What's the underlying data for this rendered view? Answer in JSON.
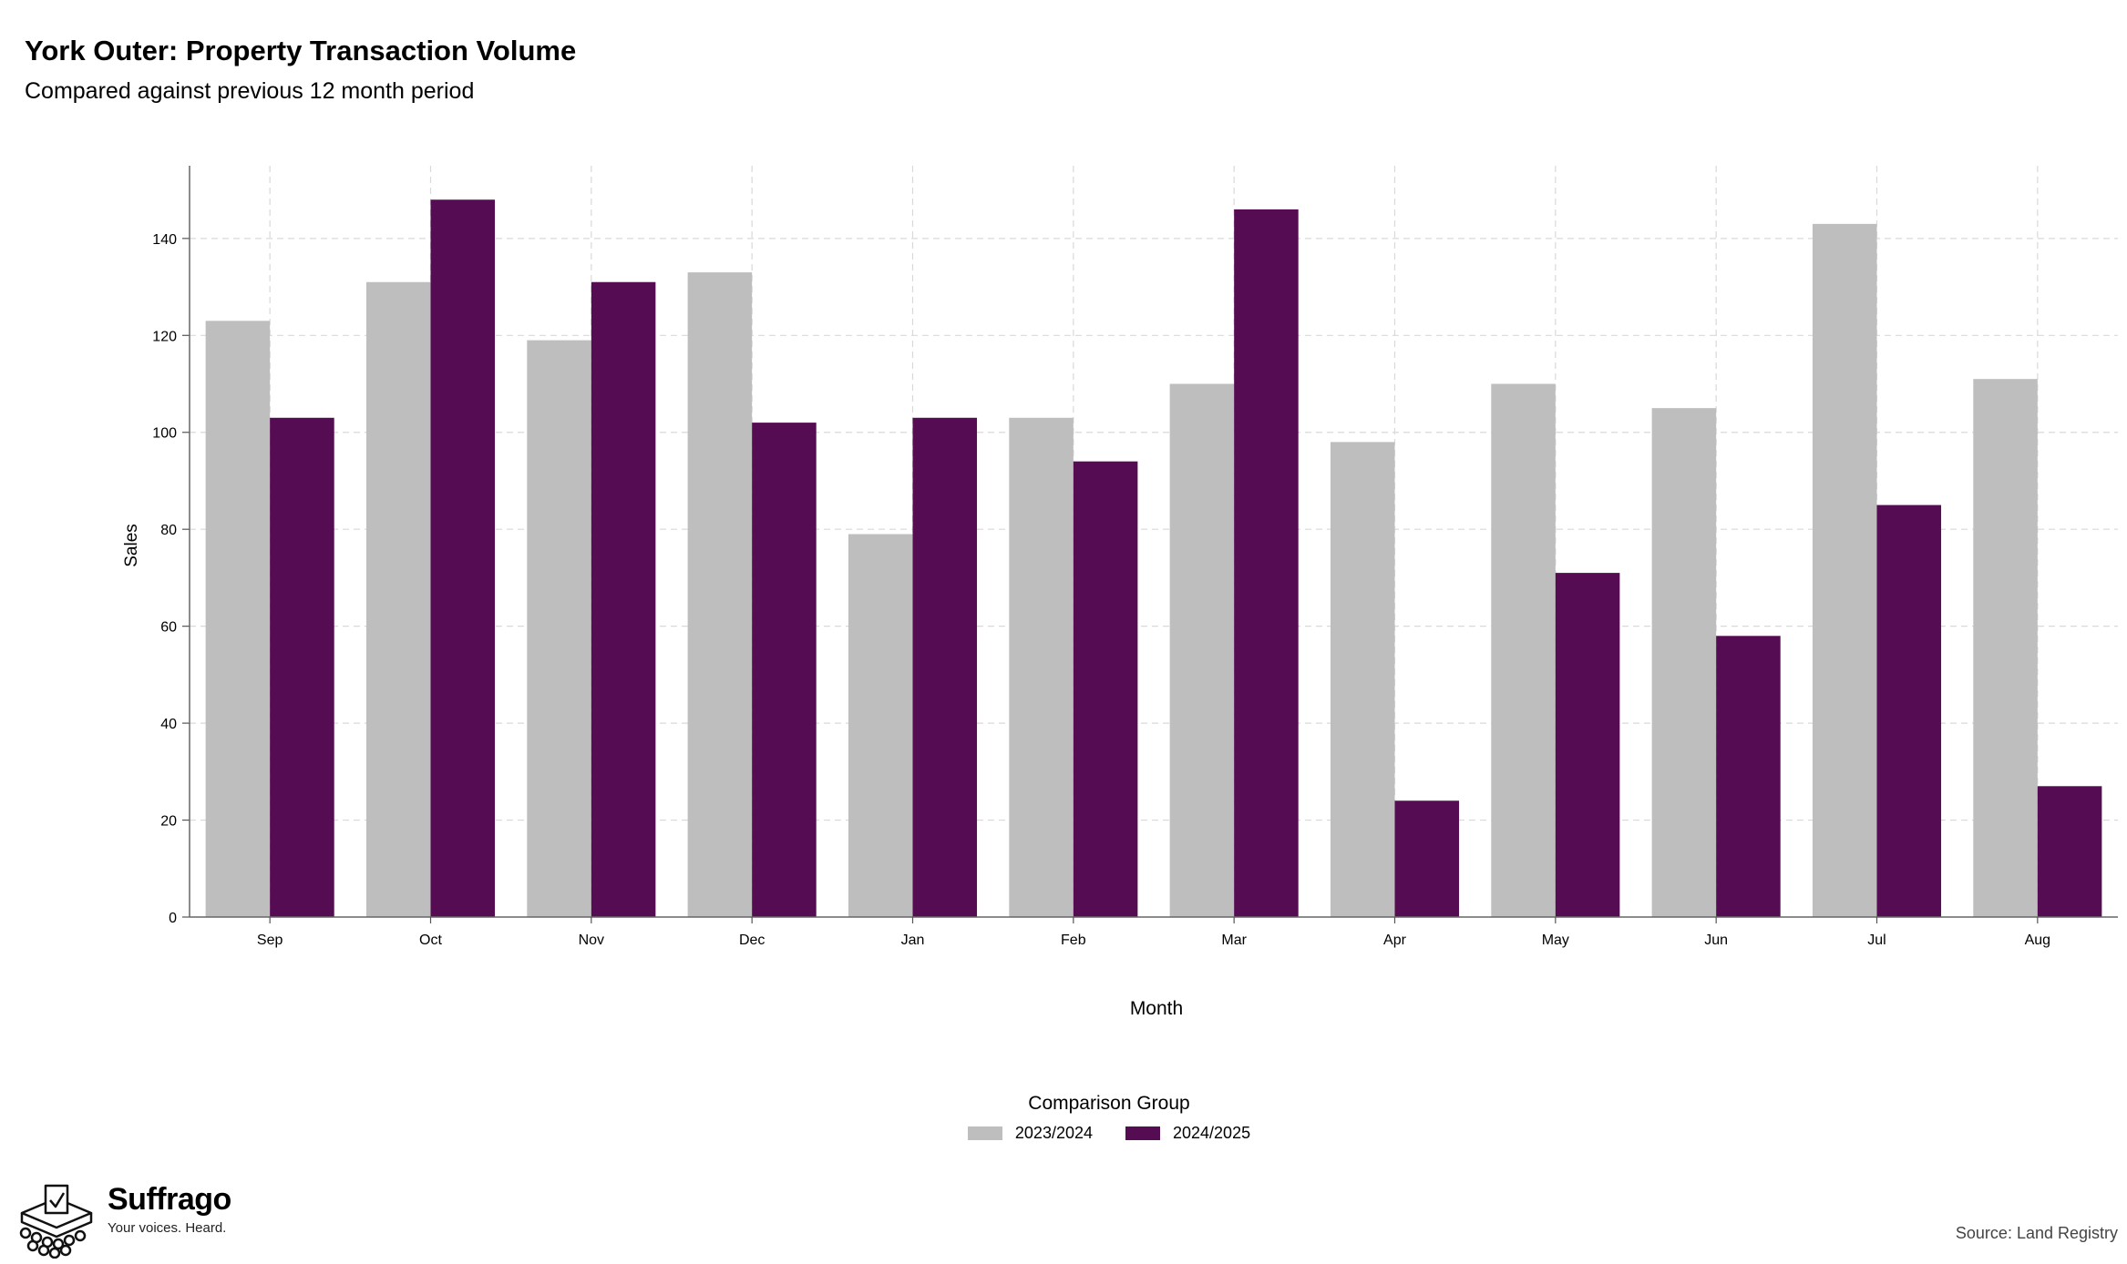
{
  "header": {
    "title": "York Outer: Property Transaction Volume",
    "subtitle": "Compared against previous 12 month period"
  },
  "chart_data": {
    "type": "bar",
    "title": "York Outer: Property Transaction Volume",
    "subtitle": "Compared against previous 12 month period",
    "xlabel": "Month",
    "ylabel": "Sales",
    "ylim": [
      0,
      155
    ],
    "yticks": [
      0,
      20,
      40,
      60,
      80,
      100,
      120,
      140
    ],
    "grid": true,
    "legend_position": "bottom",
    "legend_title": "Comparison Group",
    "categories": [
      "Sep",
      "Oct",
      "Nov",
      "Dec",
      "Jan",
      "Feb",
      "Mar",
      "Apr",
      "May",
      "Jun",
      "Jul",
      "Aug"
    ],
    "series": [
      {
        "name": "2023/2024",
        "color": "#bebebe",
        "values": [
          123,
          131,
          119,
          133,
          79,
          103,
          110,
          98,
          110,
          105,
          143,
          111
        ]
      },
      {
        "name": "2024/2025",
        "color": "#560c52",
        "values": [
          103,
          148,
          131,
          102,
          103,
          94,
          146,
          24,
          71,
          58,
          85,
          27
        ]
      }
    ]
  },
  "branding": {
    "name": "Suffrago",
    "tagline": "Your voices. Heard.",
    "icon": "ballot-box-icon"
  },
  "footer": {
    "source": "Source: Land Registry"
  }
}
